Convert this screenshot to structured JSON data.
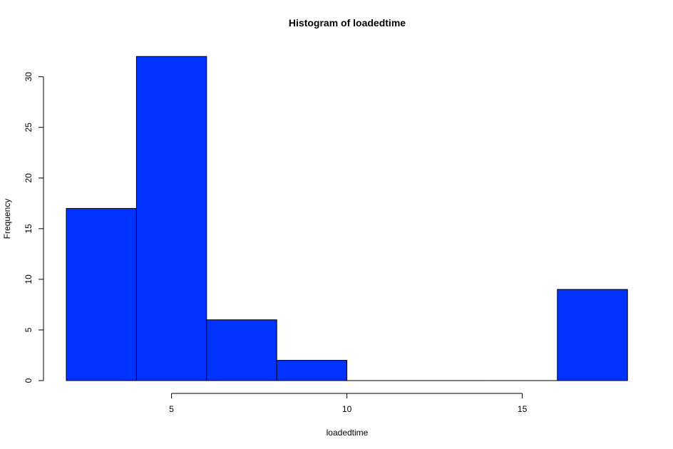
{
  "chart_data": {
    "type": "bar",
    "histogram": true,
    "title": "Histogram of loadedtime",
    "xlabel": "loadedtime",
    "ylabel": "Frequency",
    "bins": [
      {
        "x0": 2,
        "x1": 4,
        "count": 17
      },
      {
        "x0": 4,
        "x1": 6,
        "count": 32
      },
      {
        "x0": 6,
        "x1": 8,
        "count": 6
      },
      {
        "x0": 8,
        "x1": 10,
        "count": 2
      },
      {
        "x0": 10,
        "x1": 12,
        "count": 0
      },
      {
        "x0": 12,
        "x1": 14,
        "count": 0
      },
      {
        "x0": 14,
        "x1": 16,
        "count": 0
      },
      {
        "x0": 16,
        "x1": 18,
        "count": 9
      }
    ],
    "xlim": [
      2,
      18
    ],
    "ylim": [
      0,
      32
    ],
    "x_ticks": [
      5,
      10,
      15
    ],
    "y_ticks": [
      0,
      5,
      10,
      15,
      20,
      25,
      30
    ],
    "bar_color": "#0033ff",
    "grid": false
  }
}
